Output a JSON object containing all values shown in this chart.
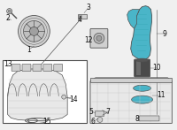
{
  "background_color": "#f0f0f0",
  "blue": "#4ab5c8",
  "blue2": "#5acada",
  "gray_light": "#d0d0d0",
  "gray_mid": "#a0a0a0",
  "gray_dark": "#707070",
  "outline": "#505050",
  "white": "#ffffff",
  "line_color": "#555555",
  "label_color": "#111111",
  "figsize": [
    2.0,
    1.47
  ],
  "dpi": 100
}
